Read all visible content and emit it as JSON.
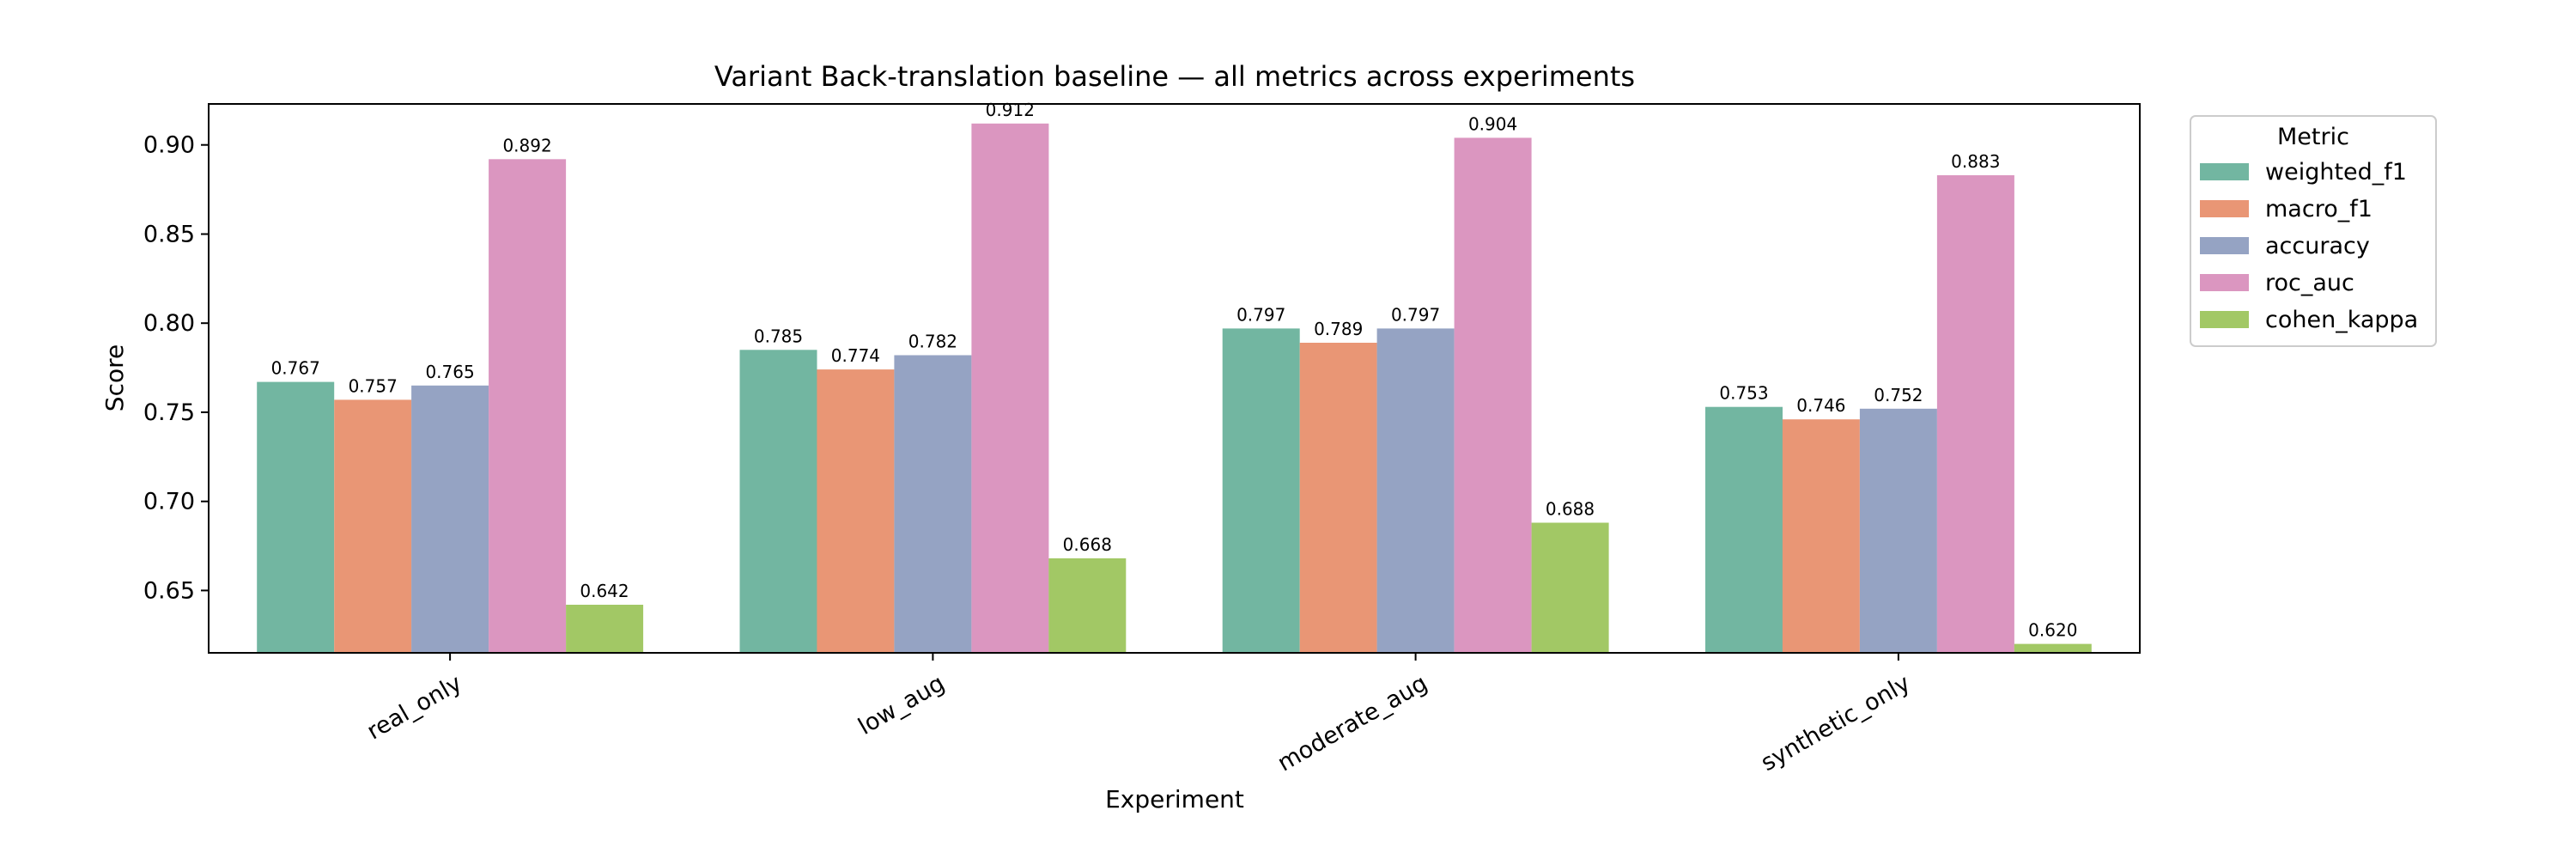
{
  "chart_data": {
    "type": "bar",
    "title": "Variant Back-translation baseline — all metrics across experiments",
    "xlabel": "Experiment",
    "ylabel": "Score",
    "categories": [
      "real_only",
      "low_aug",
      "moderate_aug",
      "synthetic_only"
    ],
    "series": [
      {
        "name": "weighted_f1",
        "color": "#72b6a1",
        "values": [
          0.767,
          0.785,
          0.797,
          0.753
        ],
        "labels": [
          "0.767",
          "0.785",
          "0.797",
          "0.753"
        ]
      },
      {
        "name": "macro_f1",
        "color": "#e99675",
        "values": [
          0.757,
          0.774,
          0.789,
          0.746
        ],
        "labels": [
          "0.757",
          "0.774",
          "0.789",
          "0.746"
        ]
      },
      {
        "name": "accuracy",
        "color": "#95a3c3",
        "values": [
          0.765,
          0.782,
          0.797,
          0.752
        ],
        "labels": [
          "0.765",
          "0.782",
          "0.797",
          "0.752"
        ]
      },
      {
        "name": "roc_auc",
        "color": "#db96c0",
        "values": [
          0.892,
          0.912,
          0.904,
          0.883
        ],
        "labels": [
          "0.892",
          "0.912",
          "0.904",
          "0.883"
        ]
      },
      {
        "name": "cohen_kappa",
        "color": "#a2c865",
        "values": [
          0.642,
          0.668,
          0.688,
          0.62
        ],
        "labels": [
          "0.642",
          "0.668",
          "0.688",
          "0.620"
        ]
      }
    ],
    "ylim": [
      0.615,
      0.923
    ],
    "yticks": [
      "0.65",
      "0.70",
      "0.75",
      "0.80",
      "0.85",
      "0.90"
    ],
    "grid": false,
    "legend": {
      "title": "Metric",
      "placement": "outside-top-right"
    }
  }
}
